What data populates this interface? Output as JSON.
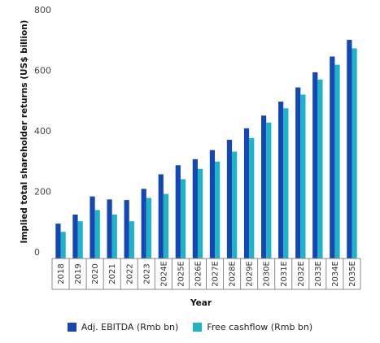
{
  "chart_data": {
    "type": "bar",
    "ylabel": "Implied total shareholder returns (US$ billion)",
    "xlabel": "Year",
    "ylim": [
      0,
      800
    ],
    "yticks": [
      0,
      200,
      400,
      600,
      800
    ],
    "grid": false,
    "legend_position": "bottom",
    "categories": [
      "2018",
      "2019",
      "2020",
      "2021",
      "2022",
      "2023",
      "2024E",
      "2025E",
      "2026E",
      "2027E",
      "2028E",
      "2029E",
      "2030E",
      "2031E",
      "2032E",
      "2033E",
      "2034E",
      "2035E"
    ],
    "series": [
      {
        "name": "Adj. EBITDA (Rmb bn)",
        "color": "#1446b4",
        "values": [
          115,
          145,
          205,
          195,
          193,
          230,
          278,
          308,
          328,
          358,
          392,
          430,
          472,
          518,
          565,
          615,
          667,
          722
        ]
      },
      {
        "name": "Free cashflow (Rmb bn)",
        "color": "#1eb4c8",
        "values": [
          88,
          123,
          160,
          145,
          123,
          200,
          213,
          262,
          296,
          320,
          353,
          398,
          449,
          496,
          541,
          591,
          640,
          694
        ]
      }
    ]
  }
}
